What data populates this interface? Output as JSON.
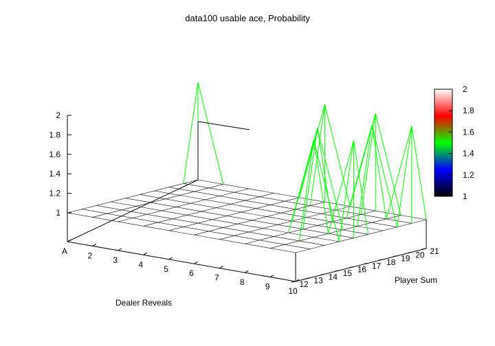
{
  "chart_data": {
    "type": "surface",
    "title": "data100 usable ace, Probability",
    "xlabel": "Dealer Reveals",
    "ylabel": "Player Sum",
    "zlabel": "",
    "x_ticks": [
      "A",
      "2",
      "3",
      "4",
      "5",
      "6",
      "7",
      "8",
      "9",
      "10"
    ],
    "y_ticks": [
      "12",
      "13",
      "14",
      "15",
      "16",
      "17",
      "18",
      "19",
      "20",
      "21"
    ],
    "z_ticks": [
      "1",
      "1.2",
      "1.4",
      "1.6",
      "1.8",
      "2"
    ],
    "zlim": [
      1,
      2
    ],
    "colorbar": {
      "ticks": [
        "1",
        "1.2",
        "1.4",
        "1.6",
        "1.8",
        "2"
      ],
      "colors": [
        "#000000",
        "#0000ff",
        "#00ff00",
        "#ff0000",
        "#ffffff"
      ]
    },
    "grid_rows_note": "",
    "spikes": [
      {
        "x": 0,
        "y": 9,
        "z": 2.0
      },
      {
        "x": 5,
        "y": 9,
        "z": 2.0
      },
      {
        "x": 7,
        "y": 9,
        "z": 2.0
      },
      {
        "x": 8,
        "y": 7,
        "z": 2.0
      },
      {
        "x": 9,
        "y": 8,
        "z": 2.0
      },
      {
        "x": 9,
        "y": 4,
        "z": 2.0
      },
      {
        "x": 8,
        "y": 3,
        "z": 2.0
      },
      {
        "x": 7,
        "y": 5,
        "z": 2.0
      }
    ]
  }
}
